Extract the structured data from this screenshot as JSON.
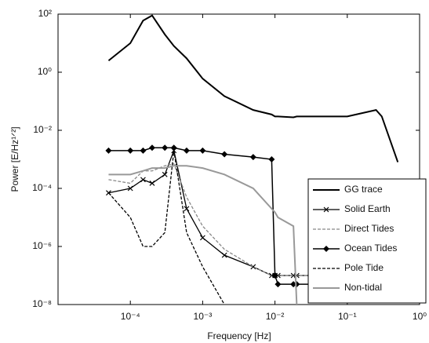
{
  "chart_data": {
    "type": "line",
    "xlabel": "Frequency [Hz]",
    "ylabel": "Power [E/Hz¹ᐟ²]",
    "xscale": "log",
    "yscale": "log",
    "xlim": [
      1e-05,
      1
    ],
    "ylim": [
      1e-08,
      100
    ],
    "xticks": [
      {
        "value": 0.0001,
        "label": "10⁻⁴"
      },
      {
        "value": 0.001,
        "label": "10⁻³"
      },
      {
        "value": 0.01,
        "label": "10⁻²"
      },
      {
        "value": 0.1,
        "label": "10⁻¹"
      },
      {
        "value": 1,
        "label": "10⁰"
      }
    ],
    "yticks": [
      {
        "value": 1e-08,
        "label": "10⁻⁸"
      },
      {
        "value": 1e-06,
        "label": "10⁻⁶"
      },
      {
        "value": 0.0001,
        "label": "10⁻⁴"
      },
      {
        "value": 0.01,
        "label": "10⁻²"
      },
      {
        "value": 1,
        "label": "10⁰"
      },
      {
        "value": 100,
        "label": "10²"
      }
    ],
    "legend": "lower right",
    "x": [
      5e-05,
      0.0001,
      0.00015,
      0.0002,
      0.0003,
      0.0004,
      0.0006,
      0.001,
      0.002,
      0.005,
      0.009,
      0.01,
      0.011,
      0.018,
      0.02,
      0.05,
      0.1,
      0.25,
      0.3,
      0.5
    ],
    "series": [
      {
        "name": "GG trace",
        "color": "#000000",
        "width": 2,
        "dash": false,
        "marker": "none",
        "values": [
          2.5,
          10,
          60,
          90,
          20,
          8,
          3,
          0.6,
          0.15,
          0.05,
          0.035,
          0.03,
          0.03,
          0.028,
          0.03,
          0.03,
          0.03,
          0.05,
          0.03,
          0.0008
        ]
      },
      {
        "name": "Solid Earth",
        "color": "#000000",
        "width": 1.3,
        "dash": false,
        "marker": "x",
        "values": [
          7e-05,
          0.0001,
          0.0002,
          0.00015,
          0.0003,
          0.002,
          2e-05,
          2e-06,
          5e-07,
          2e-07,
          1e-07,
          1e-07,
          1e-07,
          1e-07,
          1e-07,
          1e-07,
          1e-07,
          1e-07,
          1e-07,
          1e-07
        ]
      },
      {
        "name": "Direct Tides",
        "color": "#888888",
        "width": 1.3,
        "dash": true,
        "marker": "none",
        "values": [
          0.0002,
          0.00015,
          0.0004,
          0.0004,
          0.0006,
          0.0007,
          5e-05,
          5e-06,
          8e-07,
          2e-07,
          1e-07,
          1e-07,
          1e-07,
          1e-07,
          1e-07,
          1e-07,
          1e-07,
          1e-07,
          1e-07,
          1e-07
        ]
      },
      {
        "name": "Ocean Tides",
        "color": "#000000",
        "width": 1.5,
        "dash": false,
        "marker": "diamond",
        "values": [
          0.002,
          0.002,
          0.002,
          0.0025,
          0.0025,
          0.0025,
          0.002,
          0.002,
          0.0015,
          0.0012,
          0.001,
          1e-07,
          5e-08,
          5e-08,
          5e-08,
          5e-08,
          5e-08,
          5e-08,
          5e-08,
          5e-08
        ]
      },
      {
        "name": "Pole Tide",
        "color": "#000000",
        "width": 1.3,
        "dash": true,
        "marker": "none",
        "values": [
          7e-05,
          1e-05,
          1e-06,
          1e-06,
          3e-06,
          0.002,
          3e-06,
          2e-07,
          1e-08,
          null,
          null,
          null,
          null,
          null,
          null,
          null,
          null,
          null,
          null,
          null
        ]
      },
      {
        "name": "Non-tidal",
        "color": "#999999",
        "width": 2,
        "dash": false,
        "marker": "none",
        "values": [
          0.0003,
          0.0003,
          0.0004,
          0.0005,
          0.0005,
          0.0006,
          0.0006,
          0.0005,
          0.0003,
          0.0001,
          2e-05,
          1.5e-05,
          1e-05,
          5e-06,
          1e-08,
          null,
          null,
          null,
          null,
          null
        ]
      }
    ]
  }
}
